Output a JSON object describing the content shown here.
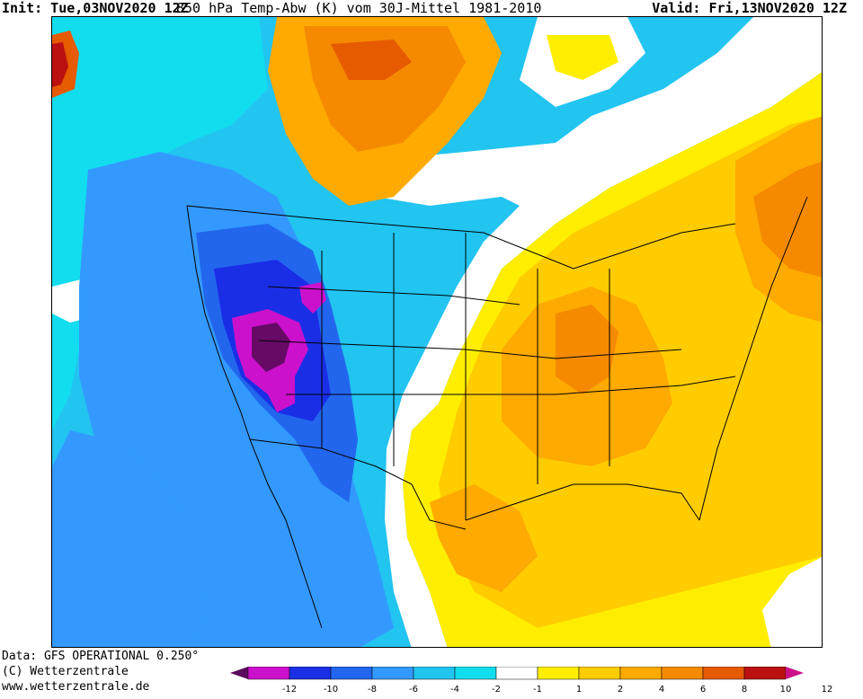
{
  "header": {
    "init": "Init: Tue,03NOV2020 12Z",
    "title": "850 hPa Temp-Abw (K) vom 30J-Mittel 1981-2010",
    "valid": "Valid: Fri,13NOV2020 12Z"
  },
  "footer": {
    "line1": "Data: GFS OPERATIONAL 0.250°",
    "line2": "(C) Wetterzentrale",
    "line3": "www.wetterzentrale.de"
  },
  "legend": {
    "ticks": [
      "-12",
      "-10",
      "-8",
      "-6",
      "-4",
      "-2",
      "-1",
      "1",
      "2",
      "4",
      "6",
      "8",
      "10",
      "12"
    ],
    "colors": [
      "#5a0a5a",
      "#cc11cc",
      "#1a2ee6",
      "#2266ee",
      "#3399ff",
      "#22c4f0",
      "#11ddee",
      "#ffffff",
      "#ffee00",
      "#ffcc00",
      "#ffaa00",
      "#f58a00",
      "#e65a00",
      "#bb1111",
      "#cc1188"
    ]
  },
  "map_colors": {
    "purple": "#660a66",
    "magenta": "#cc11cc",
    "deep_blue": "#1a2ee6",
    "blue": "#2266ee",
    "mid_blue": "#3399ff",
    "cyan": "#22c4f0",
    "light_cyan": "#11ddee",
    "white": "#ffffff",
    "yellow": "#ffee00",
    "gold": "#ffcc00",
    "orange": "#ffaa00",
    "dark_orange": "#f58a00",
    "red_orange": "#e65a00",
    "dark_red": "#bb1111"
  }
}
